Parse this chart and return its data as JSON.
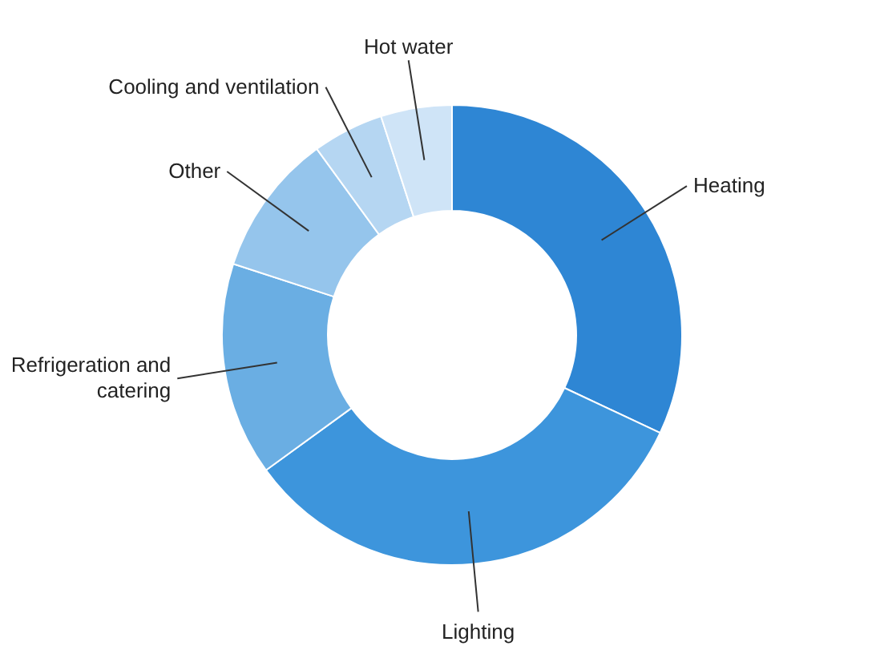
{
  "chart_data": {
    "type": "donut",
    "categories": [
      "Heating",
      "Lighting",
      "Refrigeration and catering",
      "Other",
      "Cooling and ventilation",
      "Hot water"
    ],
    "values": [
      32,
      33,
      15,
      10,
      5,
      5
    ],
    "colors": [
      "#2e86d4",
      "#3d95dc",
      "#6aaee3",
      "#95c5ec",
      "#b5d6f2",
      "#cfe4f7"
    ],
    "legend": false
  }
}
